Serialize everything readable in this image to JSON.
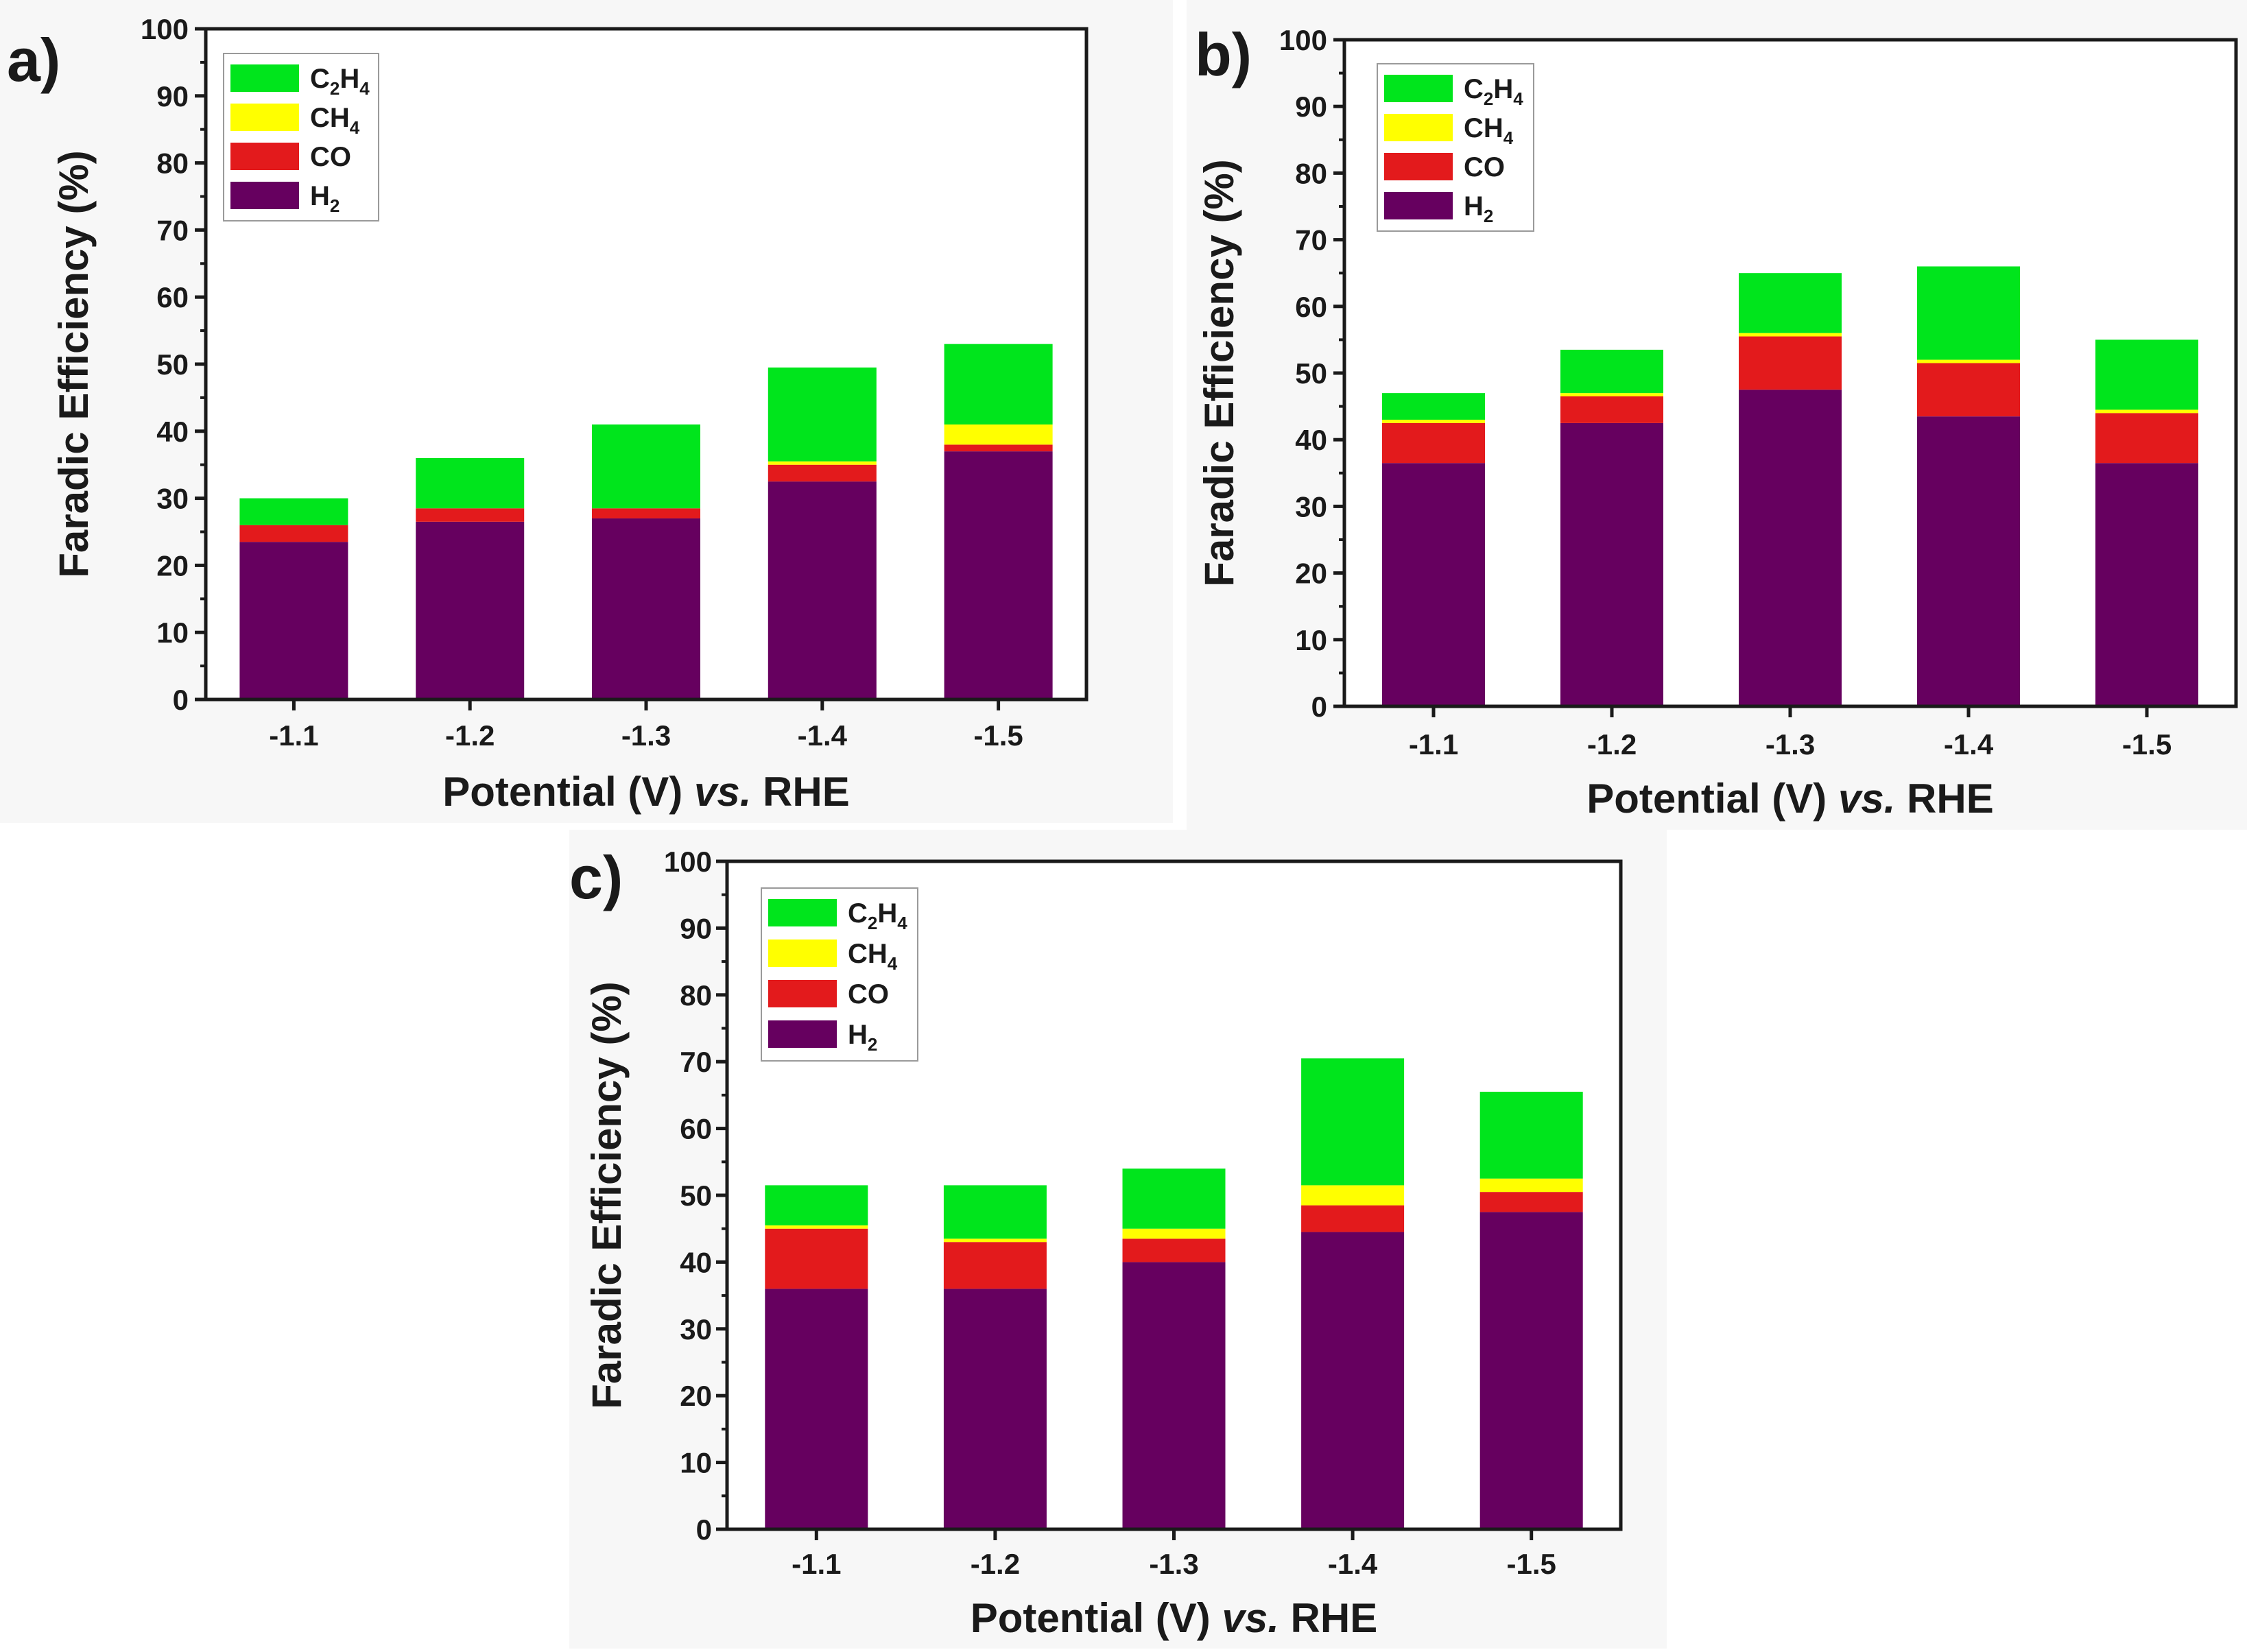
{
  "colors": {
    "H2": "#66005f",
    "CO": "#e31a1c",
    "CH4": "#ffff00",
    "C2H4": "#00e51c",
    "axis": "#1a1a1a",
    "background": "#ffffff",
    "panel_bg": "#f7f7f7"
  },
  "legend_labels": [
    {
      "key": "C2H4",
      "parts": [
        {
          "t": "C",
          "sub": false
        },
        {
          "t": "2",
          "sub": true
        },
        {
          "t": "H",
          "sub": false
        },
        {
          "t": "4",
          "sub": true
        }
      ]
    },
    {
      "key": "CH4",
      "parts": [
        {
          "t": "CH",
          "sub": false
        },
        {
          "t": "4",
          "sub": true
        }
      ]
    },
    {
      "key": "CO",
      "parts": [
        {
          "t": "CO",
          "sub": false
        }
      ]
    },
    {
      "key": "H2",
      "parts": [
        {
          "t": "H",
          "sub": false
        },
        {
          "t": "2",
          "sub": true
        }
      ]
    }
  ],
  "chart_data": [
    {
      "panel": "a)",
      "type": "bar",
      "stacked": true,
      "xlabel_parts": {
        "before": "Potential (V) ",
        "italic": "vs.",
        "after": " RHE"
      },
      "ylabel": "Faradic Efficiency (%)",
      "categories": [
        "-1.1",
        "-1.2",
        "-1.3",
        "-1.4",
        "-1.5"
      ],
      "ylim": [
        0,
        100
      ],
      "yticks": [
        0,
        10,
        20,
        30,
        40,
        50,
        60,
        70,
        80,
        90,
        100
      ],
      "legend_position": "top-left",
      "series": [
        {
          "name": "H2",
          "values": [
            23.5,
            26.5,
            27.0,
            32.5,
            37.0
          ]
        },
        {
          "name": "CO",
          "values": [
            2.5,
            2.0,
            1.5,
            2.5,
            1.0
          ]
        },
        {
          "name": "CH4",
          "values": [
            0.0,
            0.0,
            0.0,
            0.5,
            3.0
          ]
        },
        {
          "name": "C2H4",
          "values": [
            4.0,
            7.5,
            12.5,
            14.0,
            12.0
          ]
        }
      ]
    },
    {
      "panel": "b)",
      "type": "bar",
      "stacked": true,
      "xlabel_parts": {
        "before": "Potential (V) ",
        "italic": "vs.",
        "after": " RHE"
      },
      "ylabel": "Faradic Efficiency (%)",
      "categories": [
        "-1.1",
        "-1.2",
        "-1.3",
        "-1.4",
        "-1.5"
      ],
      "ylim": [
        0,
        100
      ],
      "yticks": [
        0,
        10,
        20,
        30,
        40,
        50,
        60,
        70,
        80,
        90,
        100
      ],
      "legend_position": "top-left",
      "series": [
        {
          "name": "H2",
          "values": [
            36.5,
            42.5,
            47.5,
            43.5,
            36.5
          ]
        },
        {
          "name": "CO",
          "values": [
            6.0,
            4.0,
            8.0,
            8.0,
            7.5
          ]
        },
        {
          "name": "CH4",
          "values": [
            0.5,
            0.5,
            0.5,
            0.5,
            0.5
          ]
        },
        {
          "name": "C2H4",
          "values": [
            4.0,
            6.5,
            9.0,
            14.0,
            10.5
          ]
        }
      ]
    },
    {
      "panel": "c)",
      "type": "bar",
      "stacked": true,
      "xlabel_parts": {
        "before": "Potential (V) ",
        "italic": "vs.",
        "after": " RHE"
      },
      "ylabel": "Faradic Efficiency (%)",
      "categories": [
        "-1.1",
        "-1.2",
        "-1.3",
        "-1.4",
        "-1.5"
      ],
      "ylim": [
        0,
        100
      ],
      "yticks": [
        0,
        10,
        20,
        30,
        40,
        50,
        60,
        70,
        80,
        90,
        100
      ],
      "legend_position": "top-left",
      "series": [
        {
          "name": "H2",
          "values": [
            36.0,
            36.0,
            40.0,
            44.5,
            47.5
          ]
        },
        {
          "name": "CO",
          "values": [
            9.0,
            7.0,
            3.5,
            4.0,
            3.0
          ]
        },
        {
          "name": "CH4",
          "values": [
            0.5,
            0.5,
            1.5,
            3.0,
            2.0
          ]
        },
        {
          "name": "C2H4",
          "values": [
            6.0,
            8.0,
            9.0,
            19.0,
            13.0
          ]
        }
      ]
    }
  ]
}
